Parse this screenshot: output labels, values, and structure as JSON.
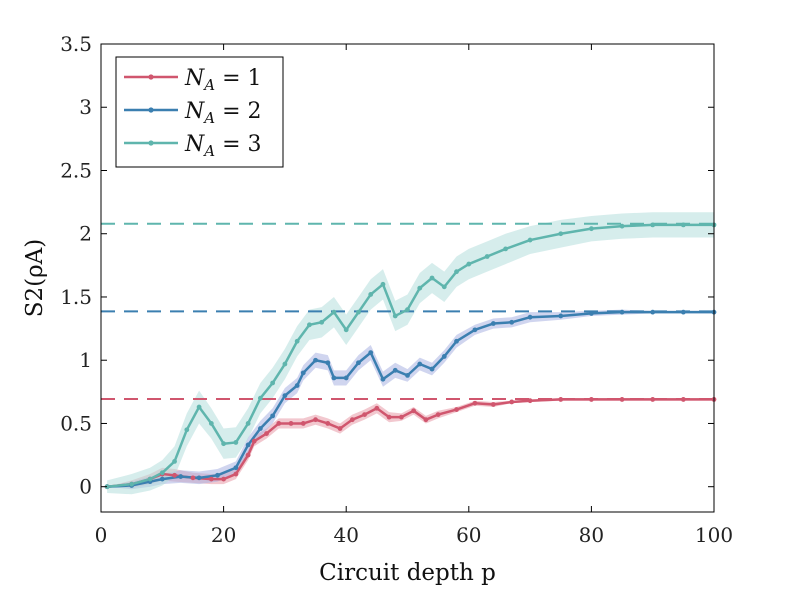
{
  "chart_data": {
    "type": "line",
    "xlabel": "Circuit depth p",
    "ylabel": "S2(ρA)",
    "xlim": [
      0,
      100
    ],
    "ylim": [
      -0.2,
      3.5
    ],
    "xticks": [
      "0",
      "20",
      "40",
      "60",
      "80",
      "100"
    ],
    "yticks": [
      "0",
      "0.5",
      "1",
      "1.5",
      "2",
      "2.5",
      "3",
      "3.5"
    ],
    "legend_position": "top-left",
    "series": [
      {
        "name": "N_A = 1",
        "label_main": "N",
        "label_sub": "A",
        "label_rest": " = 1",
        "color": "#d0566e",
        "band_color": "#e79aa8",
        "asymptote": 0.693,
        "x": [
          1,
          5,
          8,
          10,
          12,
          15,
          18,
          20,
          22,
          24,
          25,
          27,
          29,
          31,
          33,
          35,
          37,
          39,
          41,
          43,
          45,
          47,
          49,
          51,
          53,
          55,
          58,
          61,
          64,
          67,
          70,
          75,
          80,
          85,
          90,
          95,
          100
        ],
        "values": [
          0.0,
          0.02,
          0.06,
          0.1,
          0.09,
          0.07,
          0.06,
          0.06,
          0.1,
          0.25,
          0.36,
          0.42,
          0.5,
          0.5,
          0.5,
          0.53,
          0.5,
          0.46,
          0.53,
          0.57,
          0.62,
          0.55,
          0.55,
          0.6,
          0.53,
          0.57,
          0.61,
          0.66,
          0.65,
          0.67,
          0.68,
          0.69,
          0.69,
          0.69,
          0.69,
          0.69,
          0.69
        ],
        "spread": [
          0.0,
          0.03,
          0.04,
          0.05,
          0.05,
          0.04,
          0.04,
          0.04,
          0.04,
          0.04,
          0.04,
          0.04,
          0.04,
          0.04,
          0.04,
          0.04,
          0.04,
          0.04,
          0.04,
          0.04,
          0.04,
          0.04,
          0.03,
          0.03,
          0.03,
          0.03,
          0.02,
          0.02,
          0.02,
          0.01,
          0.01,
          0.01,
          0.01,
          0.01,
          0.01,
          0.01,
          0.01
        ]
      },
      {
        "name": "N_A = 2",
        "label_main": "N",
        "label_sub": "A",
        "label_rest": " = 2",
        "color": "#3b7fb0",
        "band_color": "#a9b3e2",
        "asymptote": 1.386,
        "x": [
          1,
          5,
          8,
          10,
          13,
          16,
          19,
          22,
          24,
          26,
          28,
          30,
          32,
          33,
          35,
          37,
          38,
          40,
          42,
          44,
          46,
          48,
          50,
          52,
          54,
          56,
          58,
          61,
          64,
          67,
          70,
          75,
          80,
          85,
          90,
          95,
          100
        ],
        "values": [
          0.0,
          0.01,
          0.04,
          0.06,
          0.08,
          0.07,
          0.09,
          0.15,
          0.33,
          0.46,
          0.56,
          0.72,
          0.8,
          0.9,
          1.0,
          0.98,
          0.86,
          0.86,
          0.98,
          1.06,
          0.85,
          0.92,
          0.88,
          0.97,
          0.93,
          1.03,
          1.15,
          1.24,
          1.29,
          1.3,
          1.34,
          1.35,
          1.37,
          1.38,
          1.38,
          1.38,
          1.38
        ],
        "spread": [
          0.0,
          0.03,
          0.04,
          0.04,
          0.05,
          0.05,
          0.05,
          0.05,
          0.06,
          0.06,
          0.06,
          0.06,
          0.06,
          0.06,
          0.06,
          0.06,
          0.06,
          0.06,
          0.06,
          0.06,
          0.06,
          0.06,
          0.05,
          0.05,
          0.05,
          0.05,
          0.05,
          0.04,
          0.04,
          0.04,
          0.04,
          0.03,
          0.02,
          0.02,
          0.01,
          0.01,
          0.01
        ]
      },
      {
        "name": "N_A = 3",
        "label_main": "N",
        "label_sub": "A",
        "label_rest": " = 3",
        "color": "#5fb5ad",
        "band_color": "#b4dedc",
        "asymptote": 2.079,
        "x": [
          1,
          5,
          8,
          10,
          12,
          14,
          16,
          18,
          20,
          22,
          24,
          26,
          28,
          30,
          32,
          34,
          36,
          38,
          40,
          42,
          44,
          46,
          48,
          50,
          52,
          54,
          56,
          58,
          60,
          63,
          66,
          70,
          75,
          80,
          85,
          90,
          95,
          100
        ],
        "values": [
          0.0,
          0.02,
          0.06,
          0.11,
          0.2,
          0.45,
          0.63,
          0.5,
          0.34,
          0.35,
          0.5,
          0.7,
          0.82,
          0.97,
          1.15,
          1.28,
          1.3,
          1.38,
          1.24,
          1.38,
          1.52,
          1.6,
          1.35,
          1.4,
          1.57,
          1.65,
          1.58,
          1.7,
          1.76,
          1.82,
          1.88,
          1.95,
          2.0,
          2.04,
          2.06,
          2.07,
          2.07,
          2.07
        ],
        "spread": [
          0.05,
          0.08,
          0.09,
          0.1,
          0.12,
          0.13,
          0.13,
          0.12,
          0.12,
          0.12,
          0.12,
          0.12,
          0.12,
          0.12,
          0.12,
          0.12,
          0.12,
          0.12,
          0.12,
          0.12,
          0.12,
          0.12,
          0.12,
          0.12,
          0.12,
          0.12,
          0.12,
          0.12,
          0.12,
          0.12,
          0.12,
          0.11,
          0.11,
          0.1,
          0.1,
          0.1,
          0.1,
          0.1
        ]
      }
    ]
  }
}
